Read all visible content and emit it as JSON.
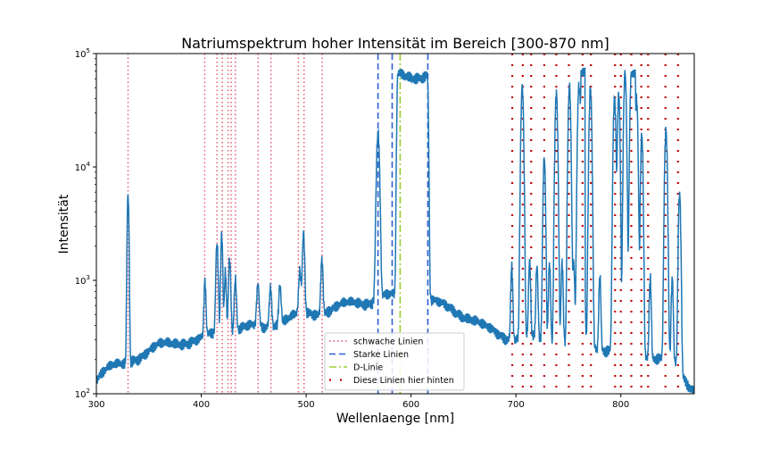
{
  "chart_data": {
    "type": "line",
    "title": "Natriumspektrum hoher Intensität im Bereich [300-870 nm]",
    "xlabel": "Wellenlaenge [nm]",
    "ylabel": "Intensität",
    "xlim": [
      300,
      870
    ],
    "ylim": [
      100,
      100000
    ],
    "yscale": "log",
    "x_ticks": [
      300,
      400,
      500,
      600,
      700,
      800
    ],
    "x_tick_labels": [
      "300",
      "400",
      "500",
      "600",
      "700",
      "800"
    ],
    "y_ticks": [
      100,
      1000,
      10000,
      100000
    ],
    "y_tick_labels": [
      {
        "base": "10",
        "exp": "2"
      },
      {
        "base": "10",
        "exp": "3"
      },
      {
        "base": "10",
        "exp": "4"
      },
      {
        "base": "10",
        "exp": "5"
      }
    ],
    "grid": false,
    "legend_position": "lower-center",
    "spectrum": {
      "color": "#1f77b4",
      "baseline": [
        [
          300,
          140
        ],
        [
          305,
          150
        ],
        [
          310,
          160
        ],
        [
          318,
          170
        ],
        [
          325,
          180
        ],
        [
          329,
          190
        ],
        [
          335,
          210
        ],
        [
          345,
          230
        ],
        [
          360,
          260
        ],
        [
          380,
          290
        ],
        [
          400,
          300
        ],
        [
          410,
          330
        ],
        [
          425,
          360
        ],
        [
          440,
          380
        ],
        [
          460,
          390
        ],
        [
          480,
          450
        ],
        [
          500,
          500
        ],
        [
          520,
          560
        ],
        [
          540,
          600
        ],
        [
          555,
          650
        ],
        [
          566,
          700
        ],
        [
          575,
          730
        ],
        [
          590,
          700
        ],
        [
          605,
          680
        ],
        [
          620,
          650
        ],
        [
          640,
          560
        ],
        [
          655,
          470
        ],
        [
          670,
          380
        ],
        [
          690,
          330
        ],
        [
          700,
          310
        ],
        [
          720,
          300
        ],
        [
          740,
          290
        ],
        [
          760,
          280
        ],
        [
          780,
          260
        ],
        [
          792,
          250
        ],
        [
          800,
          240
        ],
        [
          820,
          230
        ],
        [
          840,
          200
        ],
        [
          855,
          170
        ],
        [
          862,
          130
        ],
        [
          870,
          110
        ]
      ],
      "peaks": [
        {
          "x": 330.2,
          "y": 5800,
          "w": 0.7
        },
        {
          "x": 403.5,
          "y": 620,
          "w": 0.8
        },
        {
          "x": 415.0,
          "y": 1800,
          "w": 0.9
        },
        {
          "x": 419.5,
          "y": 2300,
          "w": 0.8
        },
        {
          "x": 423.0,
          "y": 900,
          "w": 0.8
        },
        {
          "x": 427.0,
          "y": 1300,
          "w": 0.9
        },
        {
          "x": 432.5,
          "y": 700,
          "w": 0.9
        },
        {
          "x": 454.0,
          "y": 500,
          "w": 1.0
        },
        {
          "x": 466.0,
          "y": 500,
          "w": 1.0
        },
        {
          "x": 475.0,
          "y": 520,
          "w": 1.0
        },
        {
          "x": 494.0,
          "y": 650,
          "w": 1.0
        },
        {
          "x": 497.5,
          "y": 2000,
          "w": 0.9
        },
        {
          "x": 515.0,
          "y": 1100,
          "w": 0.9
        },
        {
          "x": 568.5,
          "y": 20000,
          "w": 1.2
        },
        {
          "x": 587.5,
          "y": 64000,
          "w": 0.8
        },
        {
          "x": 615.5,
          "y": 64000,
          "w": 0.8
        },
        {
          "x": 696.0,
          "y": 1100,
          "w": 0.8
        },
        {
          "x": 706.0,
          "y": 50000,
          "w": 1.0
        },
        {
          "x": 713.0,
          "y": 1100,
          "w": 0.8
        },
        {
          "x": 720.0,
          "y": 1000,
          "w": 0.8
        },
        {
          "x": 727.0,
          "y": 12000,
          "w": 0.9
        },
        {
          "x": 732.0,
          "y": 1200,
          "w": 0.8
        },
        {
          "x": 738.5,
          "y": 48000,
          "w": 1.0
        },
        {
          "x": 744.0,
          "y": 1200,
          "w": 0.8
        },
        {
          "x": 751.0,
          "y": 50000,
          "w": 1.0
        },
        {
          "x": 755.0,
          "y": 1100,
          "w": 0.8
        },
        {
          "x": 760.0,
          "y": 48000,
          "w": 1.0
        },
        {
          "x": 763.0,
          "y": 64000,
          "w": 1.0
        },
        {
          "x": 771.0,
          "y": 50000,
          "w": 1.0
        },
        {
          "x": 780.0,
          "y": 900,
          "w": 0.8
        },
        {
          "x": 794.0,
          "y": 40000,
          "w": 1.0
        },
        {
          "x": 798.0,
          "y": 42000,
          "w": 0.9
        },
        {
          "x": 804.0,
          "y": 64000,
          "w": 1.0
        },
        {
          "x": 810.0,
          "y": 64000,
          "w": 1.0
        },
        {
          "x": 815.0,
          "y": 40000,
          "w": 1.0
        },
        {
          "x": 820.0,
          "y": 20000,
          "w": 0.9
        },
        {
          "x": 828.0,
          "y": 900,
          "w": 0.8
        },
        {
          "x": 843.0,
          "y": 20000,
          "w": 1.0
        },
        {
          "x": 849.0,
          "y": 800,
          "w": 0.8
        },
        {
          "x": 856.0,
          "y": 5500,
          "w": 0.9
        }
      ],
      "plateaus": [
        {
          "x0": 587.5,
          "x1": 615.5,
          "y": 64000
        },
        {
          "x0": 762.0,
          "x1": 766.0,
          "y": 64000
        },
        {
          "x0": 810.0,
          "x1": 814.0,
          "y": 64000
        }
      ]
    },
    "series": [
      {
        "name": "schwache Linien",
        "style": "dotted",
        "color": "#e8506a",
        "x": [
          330.2,
          403.3,
          415.0,
          420.0,
          425.5,
          428.5,
          432.5,
          454.2,
          466.5,
          492.5,
          498.0,
          515.3
        ]
      },
      {
        "name": "Starke Linien",
        "style": "dashed",
        "color": "#2f5fd0",
        "x": [
          568.5,
          582.0,
          616.0
        ]
      },
      {
        "name": "D-Linie",
        "style": "dashdot",
        "color": "#9acd32",
        "x": [
          589.6
        ]
      },
      {
        "name": "Diese Linien hier hinten",
        "style": "sparse-dotted",
        "color": "#c00000",
        "x": [
          696.5,
          706.5,
          714.5,
          727.0,
          738.5,
          750.5,
          763.5,
          771.5,
          794.5,
          800.0,
          810.0,
          819.5,
          826.0,
          842.5,
          854.5
        ]
      }
    ]
  }
}
